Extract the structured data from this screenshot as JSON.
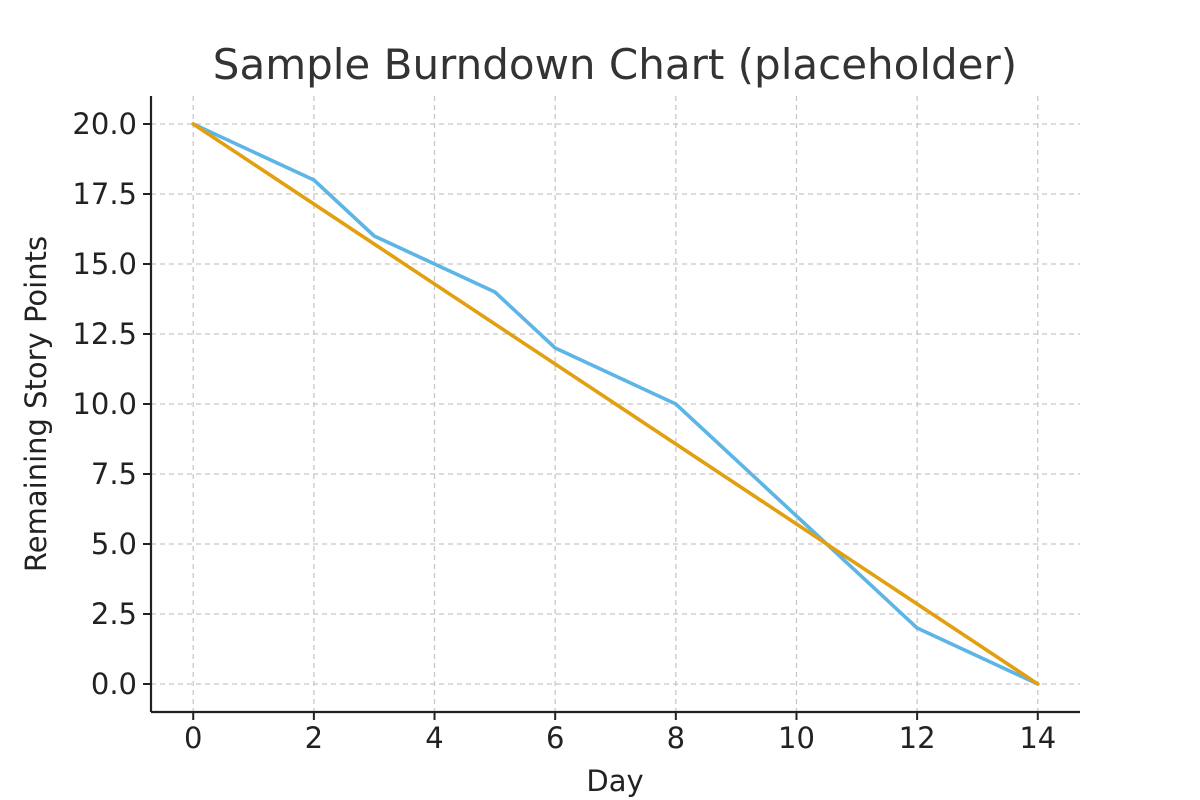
{
  "chart_data": {
    "type": "line",
    "title": "Sample Burndown Chart (placeholder)",
    "xlabel": "Day",
    "ylabel": "Remaining Story Points",
    "xlim": [
      -0.7,
      14.7
    ],
    "ylim": [
      -1.0,
      21.0
    ],
    "xticks": [
      0,
      2,
      4,
      6,
      8,
      10,
      12,
      14
    ],
    "yticks": [
      0,
      2.5,
      5,
      7.5,
      10,
      12.5,
      15,
      17.5,
      20
    ],
    "xtick_labels": [
      "0",
      "2",
      "4",
      "6",
      "8",
      "10",
      "12",
      "14"
    ],
    "ytick_labels": [
      "0.0",
      "2.5",
      "5.0",
      "7.5",
      "10.0",
      "12.5",
      "15.0",
      "17.5",
      "20.0"
    ],
    "grid": true,
    "legend": "none",
    "series": [
      {
        "color": "#5DB5E6",
        "x": [
          0,
          2,
          3,
          5,
          6,
          8,
          10,
          12,
          14
        ],
        "y": [
          20,
          18,
          16,
          14,
          12,
          10,
          6,
          2,
          0
        ]
      },
      {
        "color": "#E29F10",
        "x": [
          0,
          14
        ],
        "y": [
          20,
          0
        ]
      }
    ]
  }
}
